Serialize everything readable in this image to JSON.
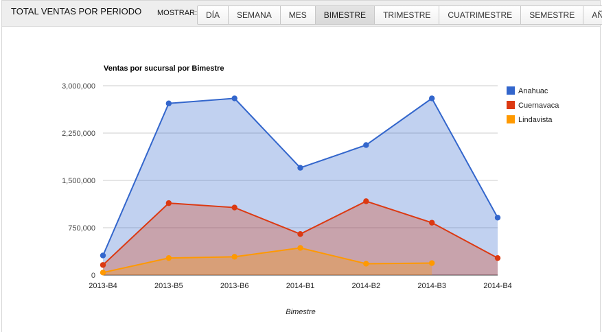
{
  "header": {
    "title": "TOTAL VENTAS POR PERIODO",
    "show_label": "MOSTRAR:",
    "tabs": [
      {
        "label": "DÍA",
        "name": "tab-dia"
      },
      {
        "label": "SEMANA",
        "name": "tab-semana"
      },
      {
        "label": "MES",
        "name": "tab-mes"
      },
      {
        "label": "BIMESTRE",
        "name": "tab-bimestre"
      },
      {
        "label": "TRIMESTRE",
        "name": "tab-trimestre"
      },
      {
        "label": "CUATRIMESTRE",
        "name": "tab-cuatrimestre"
      },
      {
        "label": "SEMESTRE",
        "name": "tab-semestre"
      },
      {
        "label": "AÑO",
        "name": "tab-ano"
      }
    ],
    "active_tab": "BIMESTRE"
  },
  "chart_data": {
    "type": "area",
    "title": "Ventas por sucursal por Bimestre",
    "xlabel": "Bimestre",
    "ylabel": "",
    "categories": [
      "2013-B4",
      "2013-B5",
      "2013-B6",
      "2014-B1",
      "2014-B2",
      "2014-B3",
      "2014-B4"
    ],
    "ylim": [
      0,
      3000000
    ],
    "yticks": [
      0,
      750000,
      1500000,
      2250000,
      3000000
    ],
    "ytick_labels": [
      "0",
      "750,000",
      "1,500,000",
      "2,250,000",
      "3,000,000"
    ],
    "grid": true,
    "legend_position": "right",
    "series": [
      {
        "name": "Anahuac",
        "color": "#3366cc",
        "values": [
          310000,
          2720000,
          2800000,
          1700000,
          2060000,
          2800000,
          910000
        ]
      },
      {
        "name": "Cuernavaca",
        "color": "#dc3912",
        "values": [
          160000,
          1140000,
          1070000,
          650000,
          1170000,
          830000,
          270000
        ]
      },
      {
        "name": "Lindavista",
        "color": "#ff9900",
        "values": [
          40000,
          270000,
          290000,
          430000,
          180000,
          190000,
          null
        ]
      }
    ]
  }
}
